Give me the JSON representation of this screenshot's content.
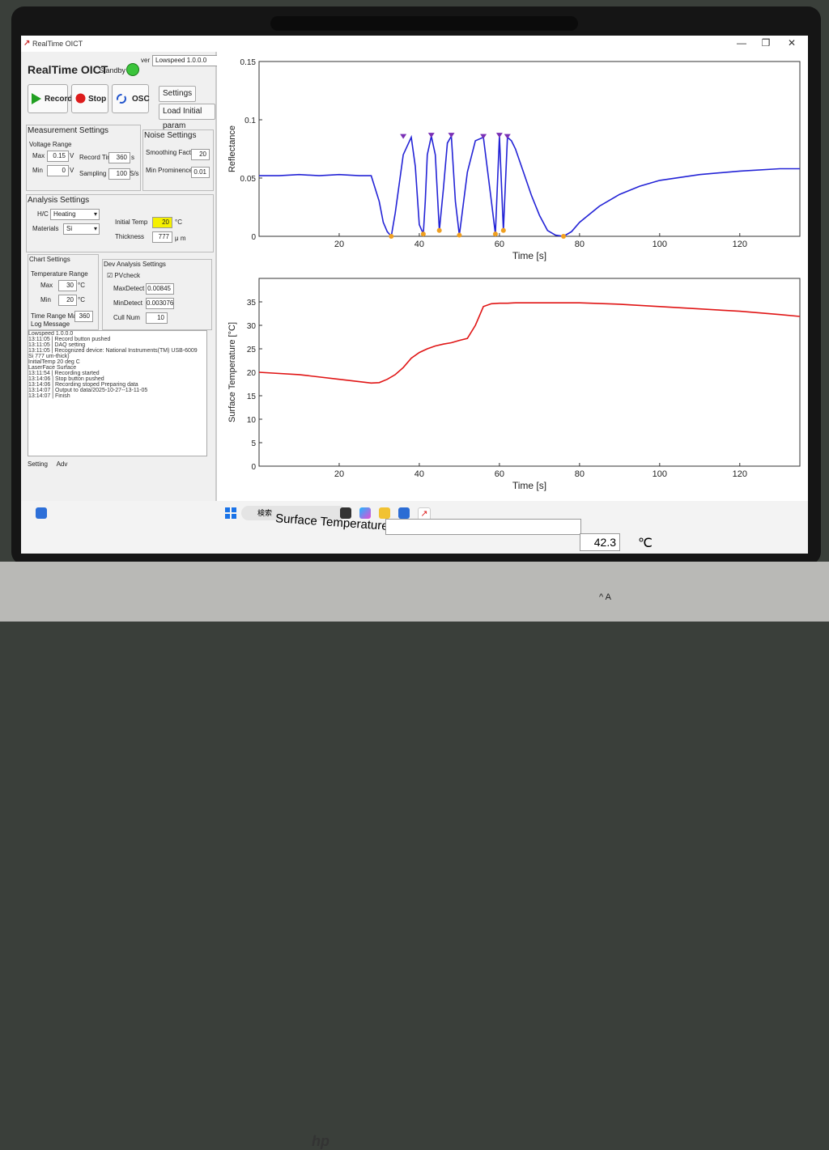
{
  "window": {
    "title": "RealTime OICT",
    "btn_min": "—",
    "btn_max": "❐",
    "btn_close": "✕"
  },
  "header": {
    "app_title": "RealTime OICT",
    "status": "Standby",
    "ver_label": "ver",
    "version": "Lowspeed 1.0.0.0"
  },
  "buttons": {
    "record": "Record",
    "stop": "Stop",
    "osc": "OSC",
    "settings": "Settings",
    "load_initial": "Load Initial param"
  },
  "measurement": {
    "title": "Measurement Settings",
    "voltage_range": "Voltage Range",
    "max_label": "Max",
    "max_value": "0.15",
    "min_label": "Min",
    "min_value": "0",
    "v_unit": "V",
    "record_time_label": "Record Time",
    "record_time": "360",
    "s_unit": "s",
    "sampling_rate_label": "Sampling Rate",
    "sampling_rate": "100",
    "sps_unit": "S/s"
  },
  "noise": {
    "title": "Noise Settings",
    "smoothing_label": "Smoothing Factor1",
    "smoothing_value": "20",
    "min_prom_label": "Min Prominence",
    "min_prom_value": "0.01"
  },
  "analysis": {
    "title": "Analysis Settings",
    "hc_label": "H/C",
    "hc_value": "Heating",
    "materials_label": "Materials",
    "materials_value": "Si",
    "initial_temp_label": "Initial Temp",
    "initial_temp": "20",
    "c_unit": "°C",
    "thickness_label": "Thickness",
    "thickness": "777",
    "um_unit": "μ m"
  },
  "chart_settings": {
    "title": "Chart Settings",
    "temp_range": "Temperature Range",
    "max_label": "Max",
    "max_value": "30",
    "min_label": "Min",
    "min_value": "20",
    "c_unit": "°C",
    "time_range_label": "Time Range Max",
    "time_range_value": "360"
  },
  "dev": {
    "title": "Dev Analysis Settings",
    "pv_check": "PVcheck",
    "max_detect_label": "MaxDetect",
    "max_detect": "0.00845",
    "min_detect_label": "MinDetect",
    "min_detect": "0.003076",
    "cull_label": "Cull Num",
    "cull": "10"
  },
  "log": {
    "title": "Log Message",
    "lines": [
      "Lowspeed 1.0.0.0",
      "13:11:05 | Record button pushed",
      "13:11:05 |   DAQ setting",
      "13:11:05 |   Recognized device: National Instruments(TM) USB-6009",
      "        Si  777 um-thick)",
      "   InitialTemp   20 deg C",
      "   LaserFace   Surface",
      "13:11:54 | Recording started",
      "13:14:06 | Stop button pushed",
      "13:14:06 |   Recording stoped  Preparing data",
      "13:14:07 |   Output to  data/2025-10-27--13-11-05",
      "13:14:07 |   Finish"
    ]
  },
  "tabs": {
    "setting": "Setting",
    "adv": "Adv"
  },
  "bottom": {
    "surface_temp_label": "Surface Temperature",
    "surface_temp_value": "42.3",
    "unit": "℃"
  },
  "taskbar": {
    "search_placeholder": "検索",
    "tray_text": "^  A"
  },
  "colors": {
    "reflectance": "#2323d6",
    "temperature": "#e01515",
    "status_ok": "#3bc43b",
    "highlight": "#f5f000"
  },
  "chart_data": [
    {
      "type": "line",
      "xlabel": "Time [s]",
      "ylabel": "Reflectance",
      "xlim": [
        0,
        135
      ],
      "ylim": [
        0,
        0.15
      ],
      "xticks": [
        20,
        40,
        60,
        80,
        100,
        120
      ],
      "yticks": [
        0,
        0.05,
        0.1,
        0.15
      ],
      "grid": false,
      "series": [
        {
          "x": [
            0,
            5,
            10,
            15,
            20,
            25,
            28,
            30,
            31,
            32,
            33,
            34,
            36,
            38,
            39,
            40,
            41,
            41.5,
            42,
            43,
            44,
            45,
            46,
            47,
            48,
            49,
            50,
            52,
            54,
            56,
            58,
            59,
            60,
            61,
            62,
            63,
            64,
            66,
            68,
            70,
            72,
            74,
            76,
            78,
            80,
            85,
            90,
            95,
            100,
            110,
            120,
            130,
            135
          ],
          "values": [
            0.052,
            0.052,
            0.053,
            0.052,
            0.053,
            0.052,
            0.052,
            0.03,
            0.012,
            0.004,
            0.0,
            0.02,
            0.07,
            0.085,
            0.06,
            0.01,
            0.002,
            0.03,
            0.07,
            0.086,
            0.07,
            0.005,
            0.04,
            0.08,
            0.086,
            0.03,
            0.001,
            0.055,
            0.082,
            0.085,
            0.03,
            0.002,
            0.086,
            0.005,
            0.085,
            0.082,
            0.075,
            0.055,
            0.035,
            0.018,
            0.005,
            0.001,
            0.0,
            0.004,
            0.012,
            0.026,
            0.036,
            0.043,
            0.048,
            0.053,
            0.056,
            0.058,
            0.058
          ]
        }
      ],
      "peaks_x": [
        36,
        43,
        48,
        56,
        60,
        62
      ],
      "peaks_y": [
        0.085,
        0.086,
        0.086,
        0.085,
        0.086,
        0.085
      ],
      "valleys_x": [
        33,
        41,
        45,
        50,
        59,
        61,
        76
      ],
      "valleys_y": [
        0.0,
        0.002,
        0.005,
        0.001,
        0.002,
        0.005,
        0.0
      ]
    },
    {
      "type": "line",
      "xlabel": "Time [s]",
      "ylabel": "Surface Temperature [°C]",
      "xlim": [
        0,
        135
      ],
      "ylim": [
        0,
        40
      ],
      "xticks": [
        20,
        40,
        60,
        80,
        100,
        120
      ],
      "yticks": [
        0,
        5,
        10,
        15,
        20,
        25,
        30,
        35
      ],
      "grid": false,
      "series": [
        {
          "x": [
            0,
            10,
            20,
            25,
            28,
            30,
            32,
            34,
            36,
            38,
            40,
            42,
            44,
            46,
            48,
            50,
            52,
            54,
            56,
            58,
            60,
            62,
            64,
            66,
            70,
            80,
            90,
            100,
            110,
            120,
            130,
            135
          ],
          "values": [
            20,
            19.5,
            18.5,
            18,
            17.7,
            17.8,
            18.5,
            19.5,
            21,
            23,
            24.2,
            25,
            25.6,
            26,
            26.3,
            26.8,
            27.2,
            30,
            34,
            34.6,
            34.7,
            34.7,
            34.8,
            34.8,
            34.8,
            34.8,
            34.5,
            34,
            33.5,
            33,
            32.3,
            31.9
          ]
        }
      ]
    }
  ]
}
